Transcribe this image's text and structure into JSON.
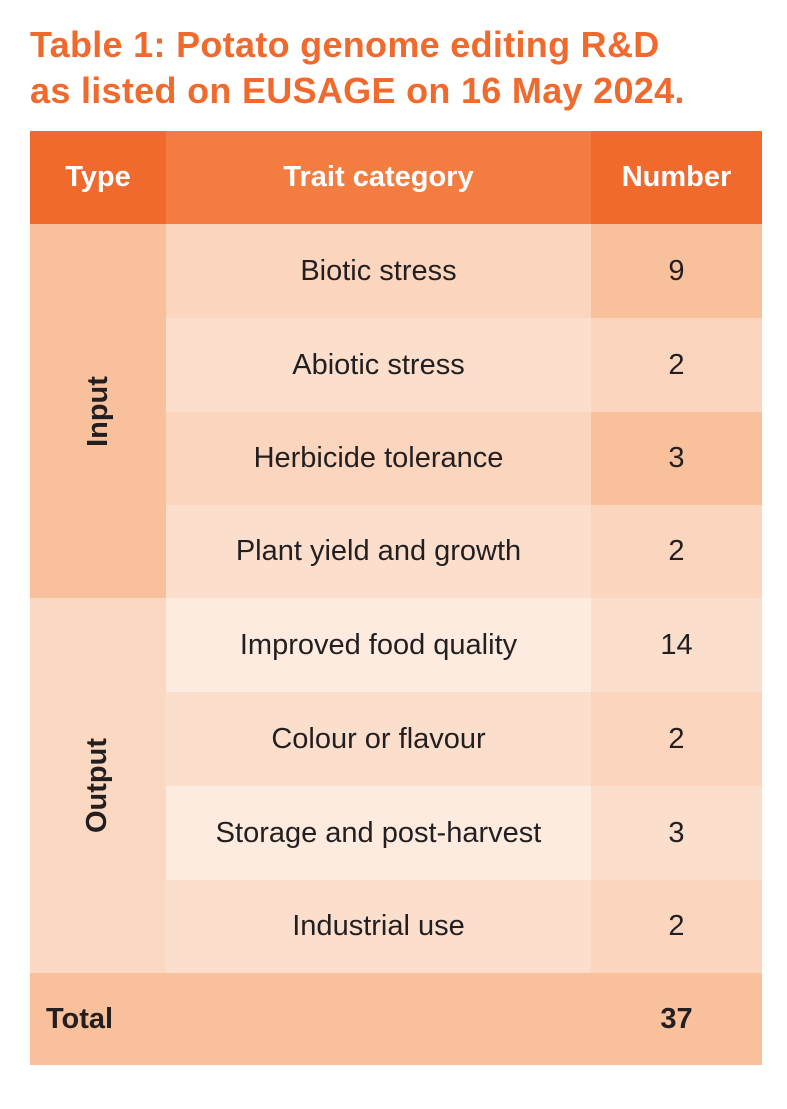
{
  "title": {
    "line1": "Table 1: Potato genome editing R&D",
    "line2": "as listed on EUSAGE on 16 May 2024."
  },
  "header": {
    "type": "Type",
    "trait": "Trait category",
    "number": "Number"
  },
  "groups": {
    "input": "Input",
    "output": "Output"
  },
  "rows": [
    {
      "trait": "Biotic stress",
      "number": "9"
    },
    {
      "trait": "Abiotic stress",
      "number": "2"
    },
    {
      "trait": "Herbicide tolerance",
      "number": "3"
    },
    {
      "trait": "Plant yield and growth",
      "number": "2"
    },
    {
      "trait": "Improved food quality",
      "number": "14"
    },
    {
      "trait": "Colour or flavour",
      "number": "2"
    },
    {
      "trait": "Storage and post-harvest",
      "number": "3"
    },
    {
      "trait": "Industrial use",
      "number": "2"
    }
  ],
  "total": {
    "label": "Total",
    "number": "37"
  },
  "colors": {
    "title": "#f06a2d",
    "header_dark": "#f06a2d",
    "header_mid": "#f37d40",
    "input_type": "#f9c09c",
    "output_type": "#fbd8c2",
    "total": "#f9c09c"
  }
}
